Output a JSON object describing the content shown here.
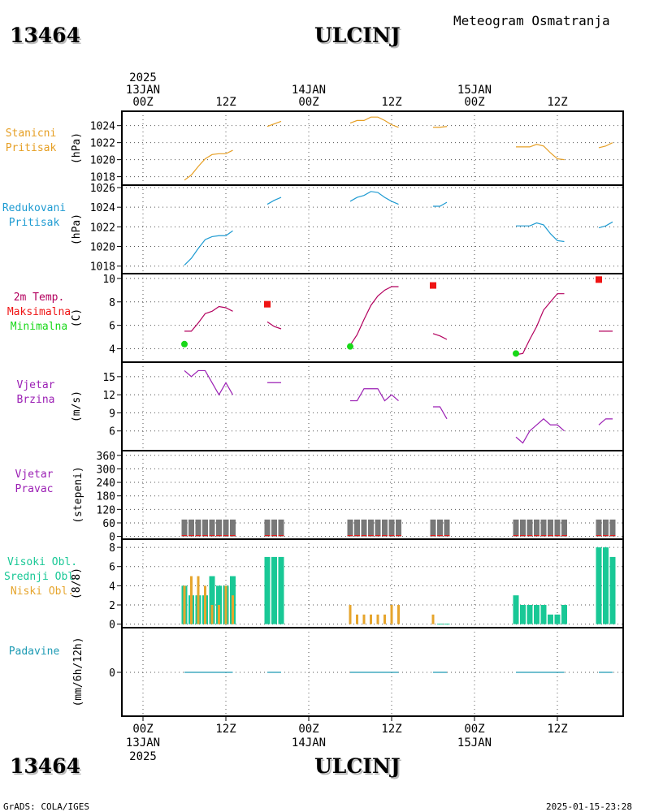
{
  "header": {
    "station_id": "13464",
    "station_name": "ULCINJ",
    "title": "Meteogram Osmatranja"
  },
  "time_axis": {
    "top": [
      {
        "hour": 0,
        "lines": [
          "2025",
          "13JAN",
          "00Z"
        ]
      },
      {
        "hour": 12,
        "lines": [
          "12Z"
        ]
      },
      {
        "hour": 24,
        "lines": [
          "14JAN",
          "00Z"
        ]
      },
      {
        "hour": 36,
        "lines": [
          "12Z"
        ]
      },
      {
        "hour": 48,
        "lines": [
          "15JAN",
          "00Z"
        ]
      },
      {
        "hour": 60,
        "lines": [
          "12Z"
        ]
      }
    ],
    "bottom": [
      {
        "hour": 0,
        "lines": [
          "00Z",
          "13JAN",
          "2025"
        ]
      },
      {
        "hour": 12,
        "lines": [
          "12Z"
        ]
      },
      {
        "hour": 24,
        "lines": [
          "00Z",
          "14JAN"
        ]
      },
      {
        "hour": 36,
        "lines": [
          "12Z"
        ]
      },
      {
        "hour": 48,
        "lines": [
          "00Z",
          "15JAN"
        ]
      },
      {
        "hour": 60,
        "lines": [
          "12Z"
        ]
      }
    ]
  },
  "footer": {
    "left": "GrADS: COLA/IGES",
    "right": "2025-01-15-23:28"
  },
  "colors": {
    "pressure": "#e69f24",
    "reduced_pressure": "#1e9bd2",
    "temperature": "#b3005e",
    "maximum": "#ef1414",
    "minimum": "#18d818",
    "wind": "#9b1fb4",
    "direction_bar": "#787878",
    "high_cloud": "#19c896",
    "low_cloud": "#e6a52d",
    "precip": "#1e9bb4"
  },
  "chart_data": [
    {
      "type": "line",
      "panel": "station-pressure",
      "title_lines": [
        "Stanicni",
        "Pritisak"
      ],
      "ylabel": "(hPa)",
      "ylim": [
        1017.2,
        1025.4
      ],
      "yticks": [
        1018,
        1020,
        1022,
        1024
      ],
      "series": [
        {
          "x": [
            6,
            7,
            8,
            9,
            10,
            11,
            12,
            13
          ],
          "values": [
            1017.6,
            1018.2,
            1019.2,
            1020.1,
            1020.6,
            1020.7,
            1020.7,
            1021.1
          ]
        },
        {
          "x": [
            18,
            19,
            20
          ],
          "values": [
            1023.9,
            1024.2,
            1024.5
          ]
        },
        {
          "x": [
            30,
            31,
            32,
            33,
            34,
            35,
            36,
            37
          ],
          "values": [
            1024.3,
            1024.6,
            1024.6,
            1025.0,
            1025.0,
            1024.6,
            1024.1,
            1023.8
          ]
        },
        {
          "x": [
            42,
            43,
            44
          ],
          "values": [
            1023.8,
            1023.8,
            1023.9
          ]
        },
        {
          "x": [
            54,
            55,
            56,
            57,
            58,
            59,
            60,
            61
          ],
          "values": [
            1021.5,
            1021.5,
            1021.5,
            1021.8,
            1021.6,
            1020.8,
            1020.1,
            1020.0
          ]
        },
        {
          "x": [
            66,
            67,
            68
          ],
          "values": [
            1021.4,
            1021.6,
            1022.0
          ]
        }
      ]
    },
    {
      "type": "line",
      "panel": "reduced-pressure",
      "title_lines": [
        "Redukovani",
        "Pritisak"
      ],
      "ylabel": "(hPa)",
      "ylim": [
        1017.4,
        1026.0
      ],
      "yticks": [
        1018,
        1020,
        1022,
        1024,
        1026
      ],
      "series": [
        {
          "x": [
            6,
            7,
            8,
            9,
            10,
            11,
            12,
            13
          ],
          "values": [
            1018.1,
            1018.8,
            1019.8,
            1020.7,
            1021.0,
            1021.1,
            1021.1,
            1021.6
          ]
        },
        {
          "x": [
            18,
            19,
            20
          ],
          "values": [
            1024.3,
            1024.7,
            1025.0
          ]
        },
        {
          "x": [
            30,
            31,
            32,
            33,
            34,
            35,
            36,
            37
          ],
          "values": [
            1024.6,
            1025.0,
            1025.2,
            1025.6,
            1025.5,
            1025.0,
            1024.6,
            1024.3
          ]
        },
        {
          "x": [
            42,
            43,
            44
          ],
          "values": [
            1024.1,
            1024.1,
            1024.5
          ]
        },
        {
          "x": [
            54,
            55,
            56,
            57,
            58,
            59,
            60,
            61
          ],
          "values": [
            1022.1,
            1022.1,
            1022.1,
            1022.4,
            1022.2,
            1021.3,
            1020.6,
            1020.5
          ]
        },
        {
          "x": [
            66,
            67,
            68
          ],
          "values": [
            1021.9,
            1022.1,
            1022.5
          ]
        }
      ]
    },
    {
      "type": "line",
      "panel": "temperature",
      "title_lines": [
        "2m Temp.",
        "Maksimalna",
        "Minimalna"
      ],
      "ylabel": "(C)",
      "ylim": [
        3.0,
        10.2
      ],
      "yticks": [
        4,
        6,
        8,
        10
      ],
      "series": [
        {
          "x": [
            6,
            7,
            8,
            9,
            10,
            11,
            12,
            13
          ],
          "values": [
            5.5,
            5.5,
            6.2,
            7.0,
            7.2,
            7.6,
            7.5,
            7.2
          ]
        },
        {
          "x": [
            18,
            19,
            20
          ],
          "values": [
            6.3,
            5.9,
            5.7
          ]
        },
        {
          "x": [
            30,
            31,
            32,
            33,
            34,
            35,
            36,
            37
          ],
          "values": [
            4.3,
            5.2,
            6.5,
            7.7,
            8.5,
            9.0,
            9.3,
            9.3
          ]
        },
        {
          "x": [
            42,
            43,
            44
          ],
          "values": [
            5.3,
            5.1,
            4.8
          ]
        },
        {
          "x": [
            54,
            55,
            56,
            57,
            58,
            59,
            60,
            61
          ],
          "values": [
            3.5,
            3.6,
            4.8,
            5.9,
            7.3,
            8.0,
            8.7,
            8.7
          ]
        },
        {
          "x": [
            66,
            67,
            68
          ],
          "values": [
            5.5,
            5.5,
            5.5
          ]
        }
      ],
      "maximum": [
        {
          "x": 18,
          "value": 7.8
        },
        {
          "x": 42,
          "value": 9.4
        },
        {
          "x": 66,
          "value": 9.9
        }
      ],
      "minimum": [
        {
          "x": 6,
          "value": 4.4
        },
        {
          "x": 30,
          "value": 4.2
        },
        {
          "x": 54,
          "value": 3.6
        }
      ]
    },
    {
      "type": "line",
      "panel": "wind-speed",
      "title_lines": [
        "Vjetar",
        "Brzina"
      ],
      "ylabel": "(m/s)",
      "ylim": [
        3.0,
        17.0
      ],
      "yticks": [
        6,
        9,
        12,
        15
      ],
      "series": [
        {
          "x": [
            6,
            7,
            8,
            9,
            10,
            11,
            12,
            13
          ],
          "values": [
            16,
            15,
            16,
            16,
            14,
            12,
            14,
            12
          ]
        },
        {
          "x": [
            18,
            19,
            20
          ],
          "values": [
            14,
            14,
            14
          ]
        },
        {
          "x": [
            30,
            31,
            32,
            33,
            34,
            35,
            36,
            37
          ],
          "values": [
            11,
            11,
            13,
            13,
            13,
            11,
            12,
            11
          ]
        },
        {
          "x": [
            42,
            43,
            44
          ],
          "values": [
            10,
            10,
            8
          ]
        },
        {
          "x": [
            54,
            55,
            56,
            57,
            58,
            59,
            60,
            61
          ],
          "values": [
            5,
            4,
            6,
            7,
            8,
            7,
            7,
            6
          ]
        },
        {
          "x": [
            66,
            67,
            68
          ],
          "values": [
            7,
            8,
            8
          ]
        }
      ]
    },
    {
      "type": "bar",
      "panel": "wind-direction",
      "title_lines": [
        "Vjetar",
        "Pravac"
      ],
      "ylabel": "(stepeni)",
      "ylim": [
        -5,
        370
      ],
      "yticks": [
        0,
        60,
        120,
        180,
        240,
        300,
        360
      ],
      "x": [
        6,
        7,
        8,
        9,
        10,
        11,
        12,
        13,
        18,
        19,
        20,
        30,
        31,
        32,
        33,
        34,
        35,
        36,
        37,
        42,
        43,
        44,
        54,
        55,
        56,
        57,
        58,
        59,
        60,
        61,
        66,
        67,
        68
      ],
      "values": [
        75,
        75,
        75,
        75,
        75,
        75,
        75,
        75,
        75,
        75,
        75,
        75,
        75,
        75,
        75,
        75,
        75,
        75,
        75,
        75,
        75,
        75,
        75,
        75,
        75,
        75,
        75,
        75,
        75,
        75,
        75,
        75,
        75
      ]
    },
    {
      "type": "bar",
      "panel": "cloud-cover",
      "title_lines": [
        "Visoki Obl.",
        "Srednji Obl.",
        "Niski Obl."
      ],
      "ylabel": "(8/8)",
      "ylim": [
        -0.2,
        8.6
      ],
      "yticks": [
        0,
        2,
        4,
        6,
        8
      ],
      "series": [
        {
          "x": [
            6,
            7,
            8,
            9,
            10,
            11,
            12,
            13,
            18,
            19,
            20,
            43,
            44,
            54,
            55,
            56,
            57,
            58,
            59,
            60,
            61,
            66,
            67,
            68
          ],
          "values": [
            4,
            3,
            3,
            3,
            5,
            4,
            4,
            5,
            7,
            7,
            7,
            0,
            0,
            3,
            2,
            2,
            2,
            2,
            1,
            1,
            2,
            8,
            8,
            7
          ]
        },
        {
          "x": [
            6,
            7,
            8,
            9,
            10,
            11,
            12,
            13,
            30,
            31,
            32,
            33,
            34,
            35,
            36,
            37,
            42
          ],
          "values": [
            4,
            5,
            5,
            4,
            2,
            2,
            4,
            3,
            2,
            1,
            1,
            1,
            1,
            1,
            2,
            2,
            1
          ]
        }
      ]
    },
    {
      "type": "line",
      "panel": "precipitation",
      "title_lines": [
        "Padavine"
      ],
      "ylabel": "(mm/6h/12h)",
      "ylim": [
        -1,
        1
      ],
      "yticks": [
        0
      ],
      "series": [
        {
          "x": [
            6,
            7,
            8,
            9,
            10,
            11,
            12,
            13
          ],
          "values": [
            0,
            0,
            0,
            0,
            0,
            0,
            0,
            0
          ]
        },
        {
          "x": [
            18,
            19,
            20
          ],
          "values": [
            0,
            0,
            0
          ]
        },
        {
          "x": [
            30,
            31,
            32,
            33,
            34,
            35,
            36,
            37
          ],
          "values": [
            0,
            0,
            0,
            0,
            0,
            0,
            0,
            0
          ]
        },
        {
          "x": [
            42,
            43,
            44
          ],
          "values": [
            0,
            0,
            0
          ]
        },
        {
          "x": [
            54,
            55,
            56,
            57,
            58,
            59,
            60,
            61
          ],
          "values": [
            0,
            0,
            0,
            0,
            0,
            0,
            0,
            0
          ]
        },
        {
          "x": [
            66,
            67,
            68
          ],
          "values": [
            0,
            0,
            0
          ]
        }
      ]
    }
  ]
}
